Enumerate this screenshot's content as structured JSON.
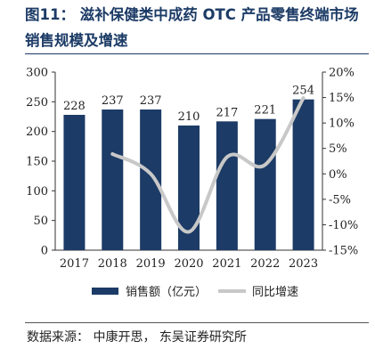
{
  "title": "图11：  滋补保健类中成药 OTC 产品零售终端市场销售规模及增速",
  "source": "数据来源： 中康开思， 东吴证券研究所",
  "colors": {
    "bar": "#1c3b66",
    "line": "#c8c8c8",
    "title": "#1c3b66"
  },
  "chart_data": {
    "type": "bar+line",
    "categories": [
      "2017",
      "2018",
      "2019",
      "2020",
      "2021",
      "2022",
      "2023"
    ],
    "series": [
      {
        "name": "销售额（亿元）",
        "type": "bar",
        "axis": "left",
        "values": [
          228,
          237,
          237,
          210,
          217,
          221,
          254
        ],
        "labels": [
          "228",
          "237",
          "237",
          "210",
          "217",
          "221",
          "254"
        ]
      },
      {
        "name": "同比增速",
        "type": "line",
        "axis": "right",
        "smooth": true,
        "values": [
          null,
          3.9,
          0.0,
          -11.4,
          3.3,
          1.8,
          14.9
        ]
      }
    ],
    "left_axis": {
      "ylim": [
        0,
        300
      ],
      "ticks": [
        "0",
        "50",
        "100",
        "150",
        "200",
        "250",
        "300"
      ]
    },
    "right_axis": {
      "ylim": [
        -15,
        20
      ],
      "ticks": [
        "-15%",
        "-10%",
        "-5%",
        "0%",
        "5%",
        "10%",
        "15%",
        "20%"
      ]
    },
    "legend_position": "bottom",
    "grid": false
  }
}
